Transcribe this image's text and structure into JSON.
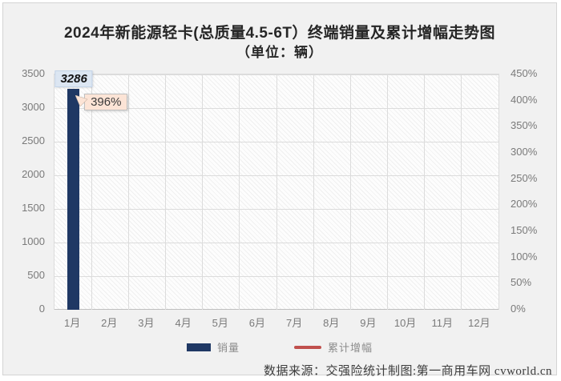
{
  "title": {
    "line1": "2024年新能源轻卡(总质量4.5-6T）终端销量及累计增幅走势图",
    "line2": "（单位：辆）"
  },
  "chart_data": {
    "type": "bar",
    "title": "2024年新能源轻卡(总质量4.5-6T）终端销量及累计增幅走势图",
    "subtitle": "（单位：辆）",
    "categories": [
      "1月",
      "2月",
      "3月",
      "4月",
      "5月",
      "6月",
      "7月",
      "8月",
      "9月",
      "10月",
      "11月",
      "12月"
    ],
    "series": [
      {
        "name": "销量",
        "type": "bar",
        "color": "#1f3864",
        "values": [
          3286,
          null,
          null,
          null,
          null,
          null,
          null,
          null,
          null,
          null,
          null,
          null
        ]
      },
      {
        "name": "累计增幅",
        "type": "line",
        "color": "#c0504d",
        "values_percent": [
          396,
          null,
          null,
          null,
          null,
          null,
          null,
          null,
          null,
          null,
          null,
          null
        ]
      }
    ],
    "left_axis": {
      "min": 0,
      "max": 3500,
      "step": 500,
      "tick_labels": [
        "3500",
        "3000",
        "2500",
        "2000",
        "1500",
        "1000",
        "500",
        "0"
      ],
      "tick_values": [
        3500,
        3000,
        2500,
        2000,
        1500,
        1000,
        500,
        0
      ]
    },
    "right_axis": {
      "min": 0,
      "max": 450,
      "step": 50,
      "tick_labels": [
        "450%",
        "400%",
        "350%",
        "300%",
        "250%",
        "200%",
        "150%",
        "100%",
        "50%",
        "0%"
      ],
      "tick_values": [
        450,
        400,
        350,
        300,
        250,
        200,
        150,
        100,
        50,
        0
      ]
    },
    "annotations": {
      "bar_label": "3286",
      "callout_label": "396%"
    },
    "legend": [
      "销量",
      "累计增幅"
    ],
    "legend_position": "bottom",
    "grid": true
  },
  "footer": {
    "text": "数据来源：交强险统计制图:第一商用车网 cvworld.cn"
  },
  "colors": {
    "bar": "#1f3864",
    "line": "#c0504d",
    "bar_label_bg": "#dce6f2",
    "callout_bg": "#fce4d6",
    "grid": "#dcdcdc",
    "tick_text": "#7a7a7a",
    "chart_bg": "#f1f1f1"
  }
}
